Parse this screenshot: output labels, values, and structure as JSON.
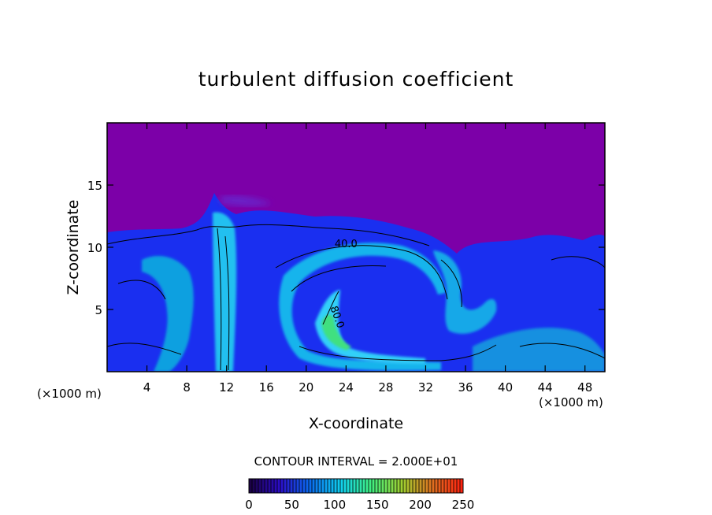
{
  "chart_data": {
    "type": "heatmap",
    "title": "turbulent diffusion coefficient",
    "xlabel": "X-coordinate",
    "ylabel": "Z-coordinate",
    "x_unit": "(×1000 m)",
    "x_ticks": [
      4,
      8,
      12,
      16,
      20,
      24,
      28,
      32,
      36,
      40,
      44,
      48
    ],
    "y_ticks": [
      5,
      10,
      15
    ],
    "xlim": [
      0,
      50
    ],
    "ylim": [
      0,
      20
    ],
    "contour_interval_label": "CONTOUR INTERVAL = 2.000E+01",
    "contour_labels": [
      {
        "text": "40.0",
        "x": 24,
        "z": 10
      },
      {
        "text": "80.0",
        "x": 22.8,
        "z": 4.3
      }
    ],
    "colorbar": {
      "ticks": [
        0,
        50,
        100,
        150,
        200,
        250
      ],
      "range": [
        0,
        250
      ],
      "colors": [
        "#1a0040",
        "#2c0cc8",
        "#0a6cf0",
        "#10d0f0",
        "#40f080",
        "#a0d030",
        "#e07020",
        "#ff2010"
      ]
    },
    "background_color": "#7c00a8"
  }
}
